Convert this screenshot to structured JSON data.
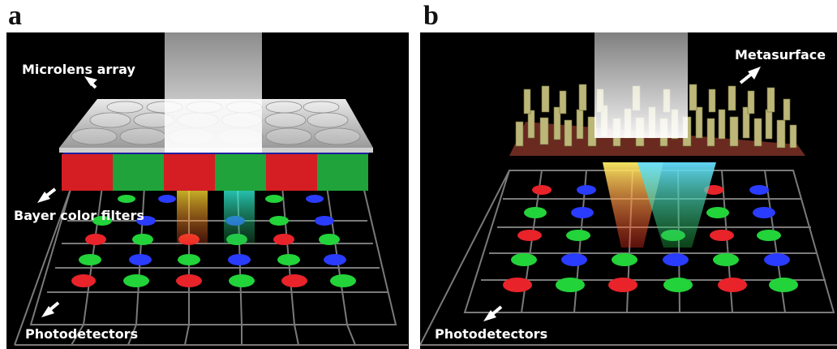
{
  "figure": {
    "panels": [
      {
        "letter": "a",
        "labels": {
          "microlens": "Microlens array",
          "filters": "Bayer color filters",
          "detectors": "Photodetectors"
        }
      },
      {
        "letter": "b",
        "labels": {
          "metasurface": "Metasurface",
          "detectors": "Photodetectors"
        }
      }
    ]
  },
  "colors": {
    "background": "#000000",
    "red": "#e8232a",
    "green": "#23d33a",
    "blue": "#2a3cff",
    "pillar": "#bcb778",
    "substrate": "#6a2a20"
  }
}
